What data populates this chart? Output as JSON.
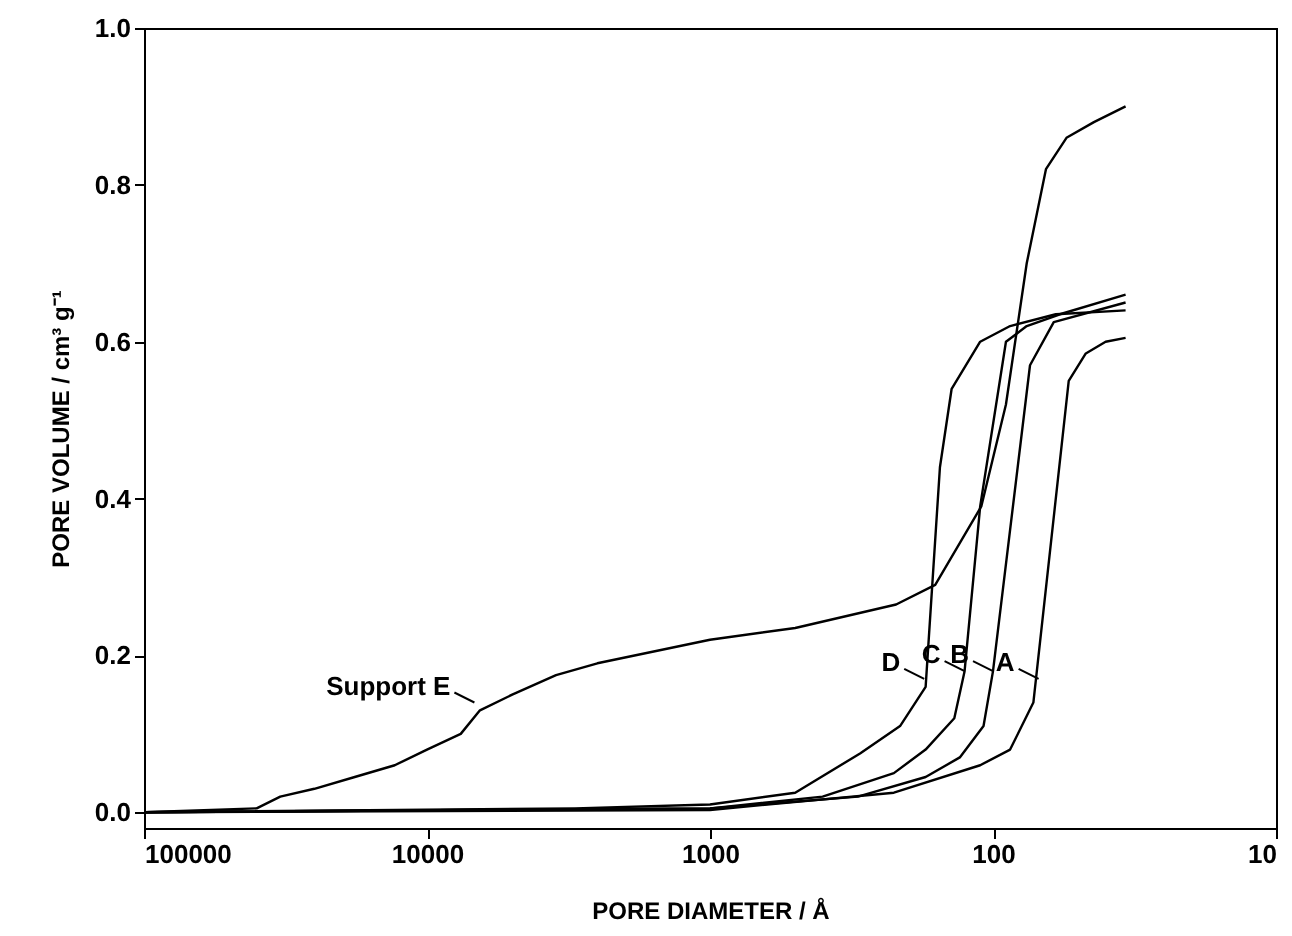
{
  "chart_data": {
    "type": "line",
    "xlabel": "PORE DIAMETER / Å",
    "ylabel": "PORE VOLUME / cm³ g⁻¹",
    "log": "x",
    "xlim": [
      100000,
      10
    ],
    "xticks": [
      100000,
      10000,
      1000,
      100,
      10
    ],
    "ylim": [
      -0.02,
      1.0
    ],
    "yticks": [
      {
        "value": 0,
        "label": "0.0"
      },
      0.2,
      0.4,
      0.6,
      0.8,
      {
        "value": 1,
        "label": "1.0"
      }
    ],
    "grid": false,
    "marker": "none",
    "line_style": "solid",
    "series": [
      {
        "color": "#000000",
        "x": [
          100000,
          1000,
          224,
          111,
          87,
          72,
          54,
          47,
          40,
          34
        ],
        "values": [
          0,
          0.003,
          0.025,
          0.06,
          0.08,
          0.14,
          0.55,
          0.585,
          0.6,
          0.605
        ]
      },
      {
        "color": "#000000",
        "x": [
          100000,
          1000,
          300,
          173,
          131,
          108,
          100,
          74,
          61,
          34
        ],
        "values": [
          0,
          0.005,
          0.02,
          0.045,
          0.07,
          0.11,
          0.18,
          0.57,
          0.625,
          0.65
        ]
      },
      {
        "color": "#000000",
        "x": [
          100000,
          1000,
          400,
          224,
          173,
          137,
          126,
          111,
          90,
          76,
          58,
          34
        ],
        "values": [
          0,
          0.005,
          0.02,
          0.05,
          0.08,
          0.12,
          0.18,
          0.39,
          0.6,
          0.62,
          0.635,
          0.66
        ]
      },
      {
        "color": "#000000",
        "x": [
          100000,
          3000,
          1000,
          500,
          295,
          213,
          173,
          154,
          140,
          111,
          87,
          60,
          34
        ],
        "values": [
          0,
          0.005,
          0.01,
          0.025,
          0.075,
          0.11,
          0.16,
          0.44,
          0.54,
          0.6,
          0.62,
          0.635,
          0.64
        ]
      },
      {
        "color": "#000000",
        "x": [
          100000,
          40000,
          33000,
          25000,
          18000,
          13000,
          10000,
          7600,
          6500,
          5000,
          3500,
          2500,
          1000,
          500,
          220,
          160,
          110,
          90,
          76,
          65,
          55,
          44,
          34
        ],
        "values": [
          0,
          0.005,
          0.02,
          0.03,
          0.045,
          0.06,
          0.08,
          0.1,
          0.13,
          0.15,
          0.175,
          0.19,
          0.22,
          0.235,
          0.265,
          0.29,
          0.39,
          0.52,
          0.7,
          0.82,
          0.86,
          0.88,
          0.9
        ]
      }
    ],
    "annotations": [
      {
        "text": "A",
        "x": 69,
        "y": 0.17
      },
      {
        "text": "B",
        "x": 100,
        "y": 0.18
      },
      {
        "text": "C",
        "x": 126,
        "y": 0.18
      },
      {
        "text": "D",
        "x": 175,
        "y": 0.17
      },
      {
        "text": "Support E",
        "x": 6800,
        "y": 0.14
      }
    ]
  }
}
